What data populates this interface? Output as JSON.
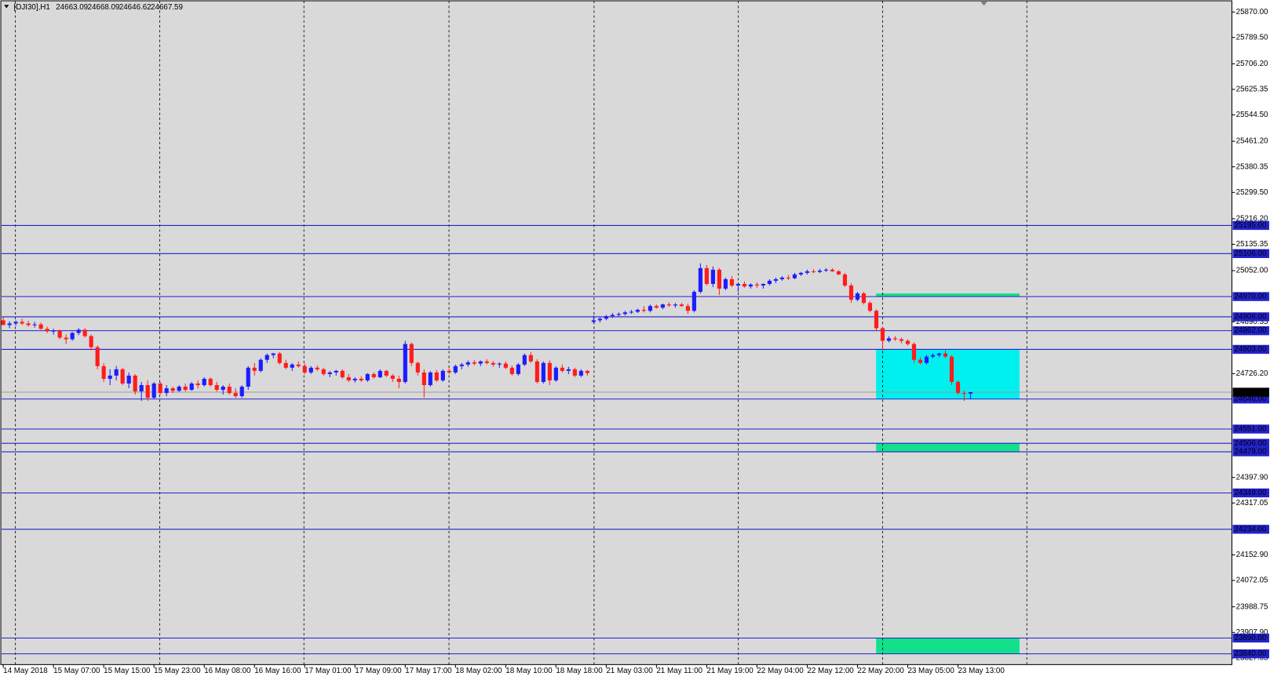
{
  "chart_data": {
    "type": "candlestick",
    "symbol": "[DJI30],H1",
    "up_color": "#1c1cff",
    "down_color": "#ff1c1c",
    "level_color": "#2222cc",
    "grid": true,
    "ylim": [
      23806,
      25908
    ],
    "yticks": [
      {
        "value": 25870,
        "label": "25870.00"
      },
      {
        "value": 25789.5,
        "label": "25789.50"
      },
      {
        "value": 25706.2,
        "label": "25706.20"
      },
      {
        "value": 25625.35,
        "label": "25625.35"
      },
      {
        "value": 25544.5,
        "label": "25544.50"
      },
      {
        "value": 25461.2,
        "label": "25461.20"
      },
      {
        "value": 25380.35,
        "label": "25380.35"
      },
      {
        "value": 25299.5,
        "label": "25299.50"
      },
      {
        "value": 25216.2,
        "label": "25216.20"
      },
      {
        "value": 25135.35,
        "label": "25135.35"
      },
      {
        "value": 25052,
        "label": "25052.00"
      },
      {
        "value": 24890.35,
        "label": "24890.35"
      },
      {
        "value": 24726.2,
        "label": "24726.20"
      },
      {
        "value": 24397.9,
        "label": "24397.90"
      },
      {
        "value": 24317.05,
        "label": "24317.05"
      },
      {
        "value": 24152.9,
        "label": "24152.90"
      },
      {
        "value": 24072.05,
        "label": "24072.05"
      },
      {
        "value": 23988.75,
        "label": "23988.75"
      },
      {
        "value": 23907.9,
        "label": "23907.90"
      },
      {
        "value": 23827.05,
        "label": "23827.05"
      }
    ],
    "levels": [
      {
        "value": 25195,
        "label": "25195.00"
      },
      {
        "value": 25106,
        "label": "25106.00"
      },
      {
        "value": 24970,
        "label": "24970.00"
      },
      {
        "value": 24906,
        "label": "24906.00"
      },
      {
        "value": 24862,
        "label": "24862.00"
      },
      {
        "value": 24803,
        "label": "24803.00"
      },
      {
        "value": 24646,
        "label": "24646.00"
      },
      {
        "value": 24551,
        "label": "24551.00"
      },
      {
        "value": 24506,
        "label": "24506.00"
      },
      {
        "value": 24479,
        "label": "24479.00"
      },
      {
        "value": 24349,
        "label": "24349.00"
      },
      {
        "value": 24234,
        "label": "24234.00"
      },
      {
        "value": 23890,
        "label": "23890.00"
      },
      {
        "value": 23840,
        "label": "23840.00"
      }
    ],
    "zones": [
      {
        "low": 24646,
        "high": 24803,
        "color": "#00f0f0"
      },
      {
        "low": 24970,
        "high": 24980,
        "color": "#14e08c"
      },
      {
        "low": 24479,
        "high": 24506,
        "color": "#14e08c"
      },
      {
        "low": 23840,
        "high": 23890,
        "color": "#14e08c"
      }
    ],
    "categories": [
      "14 May 2018",
      null,
      null,
      null,
      null,
      null,
      null,
      null,
      "15 May 07:00",
      null,
      null,
      null,
      null,
      null,
      null,
      null,
      "15 May 15:00",
      null,
      null,
      null,
      null,
      null,
      null,
      null,
      "15 May 23:00",
      null,
      null,
      null,
      null,
      null,
      null,
      null,
      "16 May 08:00",
      null,
      null,
      null,
      null,
      null,
      null,
      null,
      "16 May 16:00",
      null,
      null,
      null,
      null,
      null,
      null,
      null,
      "17 May 01:00",
      null,
      null,
      null,
      null,
      null,
      null,
      null,
      "17 May 09:00",
      null,
      null,
      null,
      null,
      null,
      null,
      null,
      "17 May 17:00",
      null,
      null,
      null,
      null,
      null,
      null,
      null,
      "18 May 02:00",
      null,
      null,
      null,
      null,
      null,
      null,
      null,
      "18 May 10:00",
      null,
      null,
      null,
      null,
      null,
      null,
      null,
      "18 May 18:00",
      null,
      null,
      null,
      null,
      null,
      null,
      null,
      "21 May 03:00",
      null,
      null,
      null,
      null,
      null,
      null,
      null,
      "21 May 11:00",
      null,
      null,
      null,
      null,
      null,
      null,
      null,
      "21 May 19:00",
      null,
      null,
      null,
      null,
      null,
      null,
      null,
      "22 May 04:00",
      null,
      null,
      null,
      null,
      null,
      null,
      null,
      "22 May 12:00",
      null,
      null,
      null,
      null,
      null,
      null,
      null,
      "22 May 20:00",
      null,
      null,
      null,
      null,
      null,
      null,
      null,
      "23 May 05:00",
      null,
      null,
      null,
      null,
      null,
      null,
      null,
      "23 May 13:00",
      null,
      null
    ],
    "candles": [
      [
        24895,
        24905,
        24880,
        24880
      ],
      [
        24880,
        24892,
        24870,
        24885
      ],
      [
        24885,
        24895,
        24878,
        24890
      ],
      [
        24890,
        24900,
        24880,
        24885
      ],
      [
        24885,
        24893,
        24875,
        24880
      ],
      [
        24880,
        24890,
        24872,
        24882
      ],
      [
        24882,
        24888,
        24865,
        24868
      ],
      [
        24868,
        24875,
        24855,
        24860
      ],
      [
        24860,
        24868,
        24850,
        24862
      ],
      [
        24862,
        24866,
        24835,
        24840
      ],
      [
        24840,
        24850,
        24820,
        24835
      ],
      [
        24835,
        24858,
        24830,
        24855
      ],
      [
        24855,
        24870,
        24848,
        24865
      ],
      [
        24865,
        24870,
        24840,
        24845
      ],
      [
        24845,
        24850,
        24800,
        24810
      ],
      [
        24810,
        24815,
        24740,
        24750
      ],
      [
        24750,
        24760,
        24700,
        24710
      ],
      [
        24710,
        24740,
        24690,
        24720
      ],
      [
        24720,
        24750,
        24705,
        24740
      ],
      [
        24740,
        24745,
        24690,
        24695
      ],
      [
        24695,
        24730,
        24680,
        24720
      ],
      [
        24720,
        24725,
        24660,
        24670
      ],
      [
        24670,
        24700,
        24640,
        24690
      ],
      [
        24690,
        24705,
        24640,
        24650
      ],
      [
        24650,
        24700,
        24645,
        24695
      ],
      [
        24695,
        24700,
        24660,
        24665
      ],
      [
        24665,
        24690,
        24655,
        24680
      ],
      [
        24680,
        24685,
        24665,
        24672
      ],
      [
        24672,
        24690,
        24668,
        24685
      ],
      [
        24685,
        24695,
        24670,
        24675
      ],
      [
        24675,
        24700,
        24672,
        24695
      ],
      [
        24695,
        24705,
        24680,
        24690
      ],
      [
        24690,
        24715,
        24685,
        24710
      ],
      [
        24710,
        24715,
        24685,
        24690
      ],
      [
        24690,
        24700,
        24670,
        24675
      ],
      [
        24675,
        24690,
        24660,
        24685
      ],
      [
        24685,
        24695,
        24660,
        24665
      ],
      [
        24665,
        24680,
        24650,
        24655
      ],
      [
        24655,
        24690,
        24650,
        24685
      ],
      [
        24685,
        24750,
        24675,
        24745
      ],
      [
        24745,
        24760,
        24720,
        24735
      ],
      [
        24735,
        24775,
        24730,
        24770
      ],
      [
        24770,
        24790,
        24760,
        24785
      ],
      [
        24785,
        24792,
        24775,
        24790
      ],
      [
        24790,
        24795,
        24755,
        24760
      ],
      [
        24760,
        24770,
        24740,
        24745
      ],
      [
        24745,
        24760,
        24735,
        24755
      ],
      [
        24755,
        24765,
        24745,
        24750
      ],
      [
        24750,
        24758,
        24725,
        24730
      ],
      [
        24730,
        24750,
        24725,
        24745
      ],
      [
        24745,
        24752,
        24735,
        24740
      ],
      [
        24740,
        24745,
        24720,
        24725
      ],
      [
        24725,
        24735,
        24715,
        24730
      ],
      [
        24730,
        24738,
        24720,
        24735
      ],
      [
        24735,
        24740,
        24710,
        24715
      ],
      [
        24715,
        24725,
        24700,
        24705
      ],
      [
        24705,
        24715,
        24698,
        24710
      ],
      [
        24710,
        24718,
        24700,
        24705
      ],
      [
        24705,
        24728,
        24700,
        24725
      ],
      [
        24725,
        24730,
        24710,
        24715
      ],
      [
        24715,
        24740,
        24712,
        24735
      ],
      [
        24735,
        24738,
        24715,
        24720
      ],
      [
        24720,
        24725,
        24700,
        24710
      ],
      [
        24710,
        24720,
        24680,
        24700
      ],
      [
        24700,
        24830,
        24695,
        24820
      ],
      [
        24820,
        24825,
        24750,
        24760
      ],
      [
        24760,
        24765,
        24720,
        24730
      ],
      [
        24730,
        24740,
        24650,
        24690
      ],
      [
        24690,
        24735,
        24685,
        24730
      ],
      [
        24730,
        24738,
        24700,
        24705
      ],
      [
        24705,
        24740,
        24700,
        24735
      ],
      [
        24735,
        24742,
        24725,
        24730
      ],
      [
        24730,
        24755,
        24725,
        24750
      ],
      [
        24750,
        24760,
        24740,
        24755
      ],
      [
        24755,
        24768,
        24748,
        24762
      ],
      [
        24762,
        24770,
        24752,
        24758
      ],
      [
        24758,
        24768,
        24750,
        24765
      ],
      [
        24765,
        24772,
        24755,
        24760
      ],
      [
        24760,
        24766,
        24748,
        24755
      ],
      [
        24755,
        24762,
        24745,
        24758
      ],
      [
        24758,
        24765,
        24740,
        24745
      ],
      [
        24745,
        24752,
        24720,
        24725
      ],
      [
        24725,
        24760,
        24720,
        24755
      ],
      [
        24755,
        24790,
        24750,
        24785
      ],
      [
        24785,
        24795,
        24760,
        24765
      ],
      [
        24765,
        24772,
        24695,
        24700
      ],
      [
        24700,
        24765,
        24695,
        24760
      ],
      [
        24760,
        24768,
        24690,
        24705
      ],
      [
        24705,
        24750,
        24700,
        24745
      ],
      [
        24745,
        24755,
        24730,
        24735
      ],
      [
        24735,
        24748,
        24725,
        24740
      ],
      [
        24740,
        24745,
        24715,
        24720
      ],
      [
        24720,
        24740,
        24715,
        24735
      ],
      [
        24735,
        24738,
        24720,
        24728
      ],
      [
        24890,
        24910,
        24885,
        24895
      ],
      [
        24895,
        24905,
        24888,
        24900
      ],
      [
        24900,
        24912,
        24895,
        24908
      ],
      [
        24908,
        24918,
        24902,
        24912
      ],
      [
        24912,
        24920,
        24905,
        24915
      ],
      [
        24915,
        24925,
        24910,
        24920
      ],
      [
        24920,
        24928,
        24915,
        24922
      ],
      [
        24922,
        24932,
        24918,
        24928
      ],
      [
        24928,
        24940,
        24920,
        24925
      ],
      [
        24925,
        24945,
        24920,
        24940
      ],
      [
        24940,
        24945,
        24932,
        24935
      ],
      [
        24935,
        24948,
        24930,
        24945
      ],
      [
        24945,
        24952,
        24938,
        24942
      ],
      [
        24942,
        24950,
        24935,
        24945
      ],
      [
        24945,
        24950,
        24938,
        24940
      ],
      [
        24940,
        24948,
        24915,
        24925
      ],
      [
        24925,
        24990,
        24920,
        24985
      ],
      [
        24985,
        25075,
        24980,
        25060
      ],
      [
        25060,
        25070,
        25005,
        25010
      ],
      [
        25010,
        25065,
        25000,
        25055
      ],
      [
        25055,
        25060,
        24975,
        24995
      ],
      [
        24995,
        25030,
        24990,
        25025
      ],
      [
        25025,
        25035,
        25000,
        25005
      ],
      [
        25005,
        25015,
        24985,
        25010
      ],
      [
        25010,
        25018,
        24998,
        25002
      ],
      [
        25002,
        25012,
        24995,
        25008
      ],
      [
        25008,
        25015,
        24998,
        25005
      ],
      [
        25005,
        25012,
        24995,
        25010
      ],
      [
        25010,
        25025,
        25005,
        25020
      ],
      [
        25020,
        25030,
        25012,
        25025
      ],
      [
        25025,
        25035,
        25020,
        25030
      ],
      [
        25030,
        25038,
        25022,
        25028
      ],
      [
        25028,
        25045,
        25025,
        25040
      ],
      [
        25040,
        25048,
        25035,
        25045
      ],
      [
        25045,
        25055,
        25040,
        25050
      ],
      [
        25050,
        25056,
        25044,
        25048
      ],
      [
        25048,
        25058,
        25044,
        25052
      ],
      [
        25052,
        25060,
        25048,
        25055
      ],
      [
        25055,
        25060,
        25048,
        25050
      ],
      [
        25050,
        25054,
        25038,
        25040
      ],
      [
        25040,
        25045,
        25000,
        25005
      ],
      [
        25005,
        25012,
        24950,
        24960
      ],
      [
        24960,
        24985,
        24955,
        24980
      ],
      [
        24980,
        24985,
        24945,
        24950
      ],
      [
        24950,
        24955,
        24920,
        24925
      ],
      [
        24925,
        24930,
        24860,
        24870
      ],
      [
        24870,
        24875,
        24800,
        24830
      ],
      [
        24830,
        24845,
        24825,
        24838
      ],
      [
        24838,
        24845,
        24830,
        24835
      ],
      [
        24835,
        24840,
        24822,
        24830
      ],
      [
        24830,
        24835,
        24815,
        24820
      ],
      [
        24820,
        24825,
        24760,
        24770
      ],
      [
        24770,
        24778,
        24755,
        24760
      ],
      [
        24760,
        24785,
        24755,
        24780
      ],
      [
        24780,
        24790,
        24775,
        24785
      ],
      [
        24785,
        24792,
        24778,
        24790
      ],
      [
        24790,
        24800,
        24775,
        24780
      ],
      [
        24780,
        24785,
        24690,
        24700
      ],
      [
        24700,
        24705,
        24660,
        24665
      ],
      [
        24665,
        24672,
        24640,
        24663
      ],
      [
        24663.09,
        24668.09,
        24646.62,
        24667.59
      ]
    ]
  }
}
